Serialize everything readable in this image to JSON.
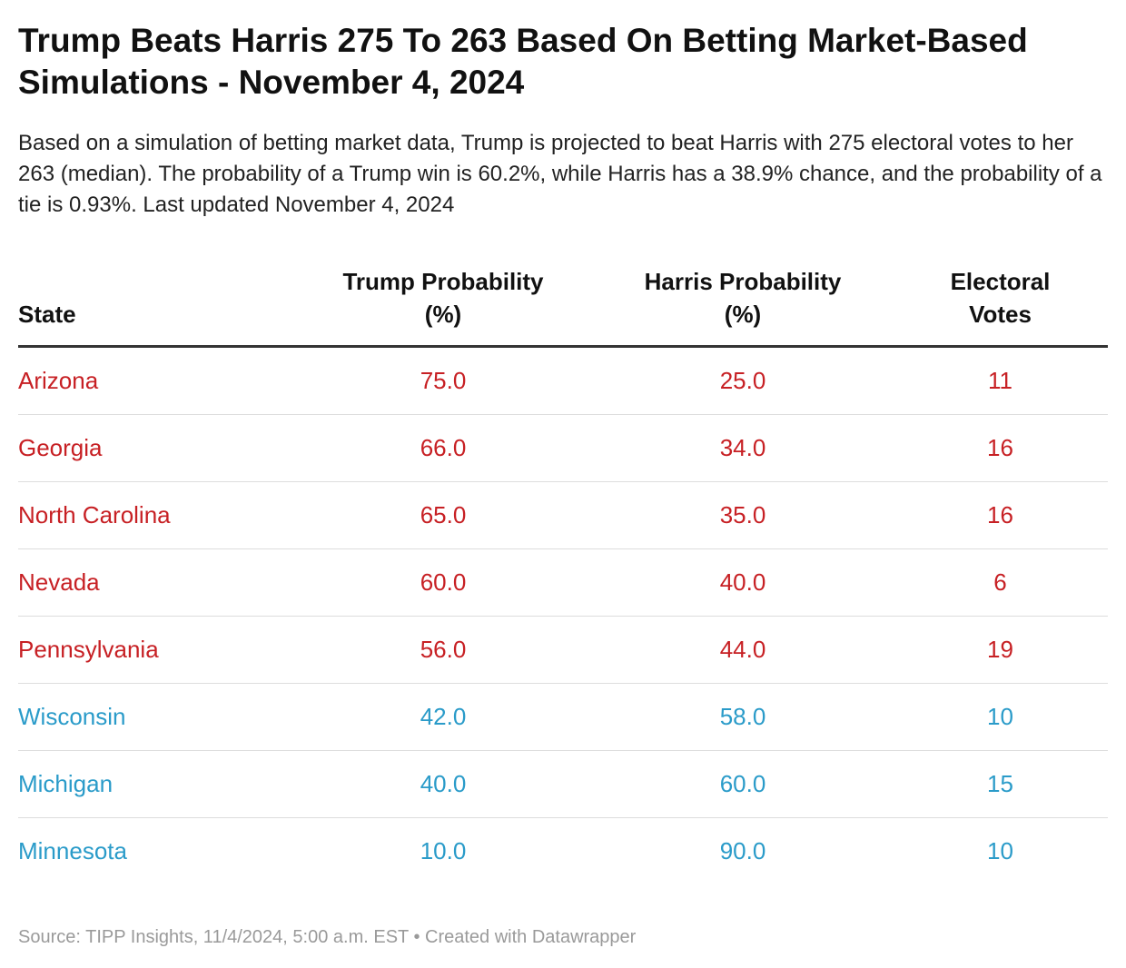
{
  "title": "Trump Beats Harris 275 To 263 Based On Betting Market-Based Simulations - November 4, 2024",
  "description": "Based on a simulation of betting market data, Trump is projected to beat Harris with 275 electoral votes to her 263 (median). The probability of a Trump win is 60.2%, while Harris has a 38.9% chance, and the probability of a tie is 0.93%. Last updated November 4, 2024",
  "colors": {
    "trump": "#c72024",
    "harris": "#2a9bc9"
  },
  "chart_data": {
    "type": "table",
    "columns": [
      "State",
      "Trump Probability (%)",
      "Harris Probability (%)",
      "Electoral Votes"
    ],
    "rows": [
      {
        "state": "Arizona",
        "trump": "75.0",
        "harris": "25.0",
        "votes": "11",
        "lean": "trump"
      },
      {
        "state": "Georgia",
        "trump": "66.0",
        "harris": "34.0",
        "votes": "16",
        "lean": "trump"
      },
      {
        "state": "North Carolina",
        "trump": "65.0",
        "harris": "35.0",
        "votes": "16",
        "lean": "trump"
      },
      {
        "state": "Nevada",
        "trump": "60.0",
        "harris": "40.0",
        "votes": "6",
        "lean": "trump"
      },
      {
        "state": "Pennsylvania",
        "trump": "56.0",
        "harris": "44.0",
        "votes": "19",
        "lean": "trump"
      },
      {
        "state": "Wisconsin",
        "trump": "42.0",
        "harris": "58.0",
        "votes": "10",
        "lean": "harris"
      },
      {
        "state": "Michigan",
        "trump": "40.0",
        "harris": "60.0",
        "votes": "15",
        "lean": "harris"
      },
      {
        "state": "Minnesota",
        "trump": "10.0",
        "harris": "90.0",
        "votes": "10",
        "lean": "harris"
      }
    ]
  },
  "footer": "Source: TIPP Insights, 11/4/2024, 5:00 a.m. EST • Created with Datawrapper"
}
